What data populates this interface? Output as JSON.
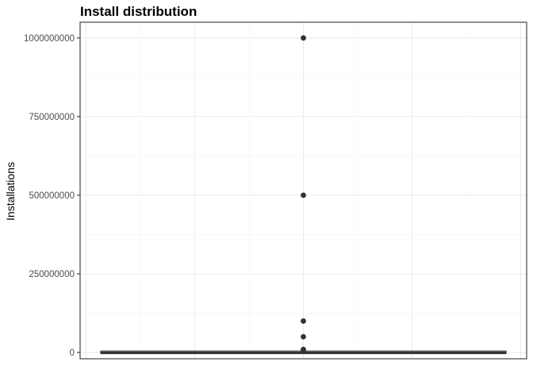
{
  "chart_data": {
    "type": "box",
    "title": "Install distribution",
    "xlabel": "",
    "ylabel": "Installations",
    "ylim": [
      -20000000,
      1050000000
    ],
    "yticks": [
      0,
      250000000,
      500000000,
      750000000,
      1000000000
    ],
    "ytick_labels": [
      "0",
      "250000000",
      "500000000",
      "750000000",
      "1000000000"
    ],
    "box": {
      "min": 0,
      "q1": 0,
      "median": 0,
      "q3": 1000000
    },
    "outliers": [
      5000000,
      10000000,
      50000000,
      100000000,
      500000000,
      1000000000
    ],
    "grid": true,
    "colors": {
      "box": "#333333",
      "grid_major": "#ebebeb",
      "grid_minor": "#f4f4f4",
      "panel_border": "#333333"
    }
  }
}
